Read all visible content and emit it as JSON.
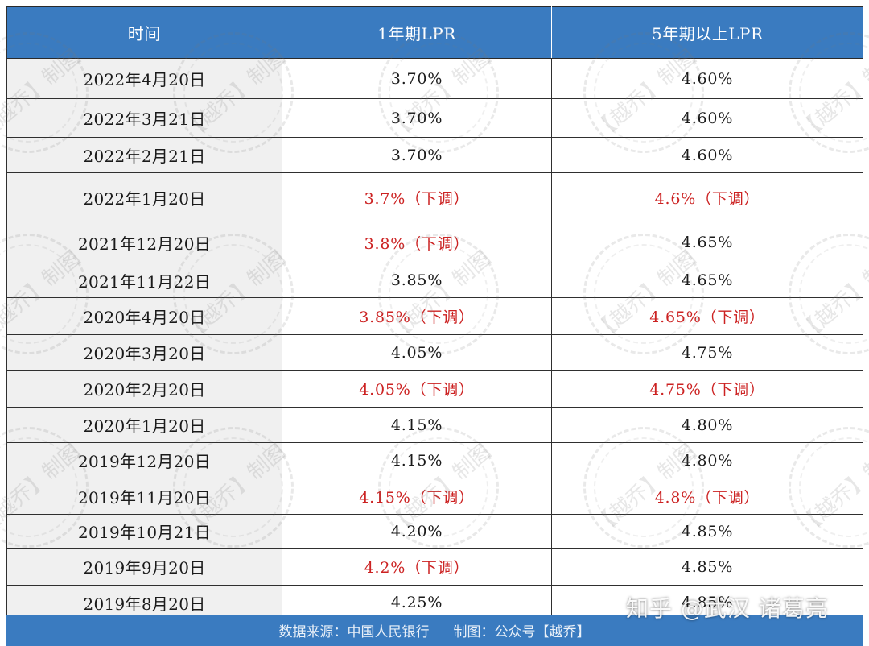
{
  "header": {
    "col_time": "时间",
    "col_1y": "1年期LPR",
    "col_5y": "5年期以上LPR"
  },
  "rows": [
    {
      "date": "2022年4月20日",
      "lpr1": "3.70%",
      "lpr5": "4.60%",
      "lpr1_red": false,
      "lpr5_red": false
    },
    {
      "date": "2022年3月21日",
      "lpr1": "3.70%",
      "lpr5": "4.60%",
      "lpr1_red": false,
      "lpr5_red": false
    },
    {
      "date": "2022年2月21日",
      "lpr1": "3.70%",
      "lpr5": "4.60%",
      "lpr1_red": false,
      "lpr5_red": false
    },
    {
      "date": "2022年1月20日",
      "lpr1": "3.7%（下调）",
      "lpr5": "4.6%（下调）",
      "lpr1_red": true,
      "lpr5_red": true
    },
    {
      "date": "2021年12月20日",
      "lpr1": "3.8%（下调）",
      "lpr5": "4.65%",
      "lpr1_red": true,
      "lpr5_red": false
    },
    {
      "date": "2021年11月22日",
      "lpr1": "3.85%",
      "lpr5": "4.65%",
      "lpr1_red": false,
      "lpr5_red": false
    },
    {
      "date": "2020年4月20日",
      "lpr1": "3.85%（下调）",
      "lpr5": "4.65%（下调）",
      "lpr1_red": true,
      "lpr5_red": true
    },
    {
      "date": "2020年3月20日",
      "lpr1": "4.05%",
      "lpr5": "4.75%",
      "lpr1_red": false,
      "lpr5_red": false
    },
    {
      "date": "2020年2月20日",
      "lpr1": "4.05%（下调）",
      "lpr5": "4.75%（下调）",
      "lpr1_red": true,
      "lpr5_red": true
    },
    {
      "date": "2020年1月20日",
      "lpr1": "4.15%",
      "lpr5": "4.80%",
      "lpr1_red": false,
      "lpr5_red": false
    },
    {
      "date": "2019年12月20日",
      "lpr1": "4.15%",
      "lpr5": "4.80%",
      "lpr1_red": false,
      "lpr5_red": false
    },
    {
      "date": "2019年11月20日",
      "lpr1": "4.15%（下调）",
      "lpr5": "4.8%（下调）",
      "lpr1_red": true,
      "lpr5_red": true
    },
    {
      "date": "2019年10月21日",
      "lpr1": "4.20%",
      "lpr5": "4.85%",
      "lpr1_red": false,
      "lpr5_red": false
    },
    {
      "date": "2019年9月20日",
      "lpr1": "4.2%（下调）",
      "lpr5": "4.85%",
      "lpr1_red": true,
      "lpr5_red": false
    },
    {
      "date": "2019年8月20日",
      "lpr1": "4.25%",
      "lpr5": "4.85%",
      "lpr1_red": false,
      "lpr5_red": false
    }
  ],
  "footer": {
    "source": "数据来源：中国人民银行",
    "maker": "制图：公众号【越乔】"
  },
  "watermark_text": "【越乔】制图",
  "brand_watermark": "知乎 @武汉 诸葛亮",
  "colors": {
    "header_bg": "#3a7bc0",
    "date_bg": "#f0f0f0",
    "down_red": "#cc2222"
  }
}
